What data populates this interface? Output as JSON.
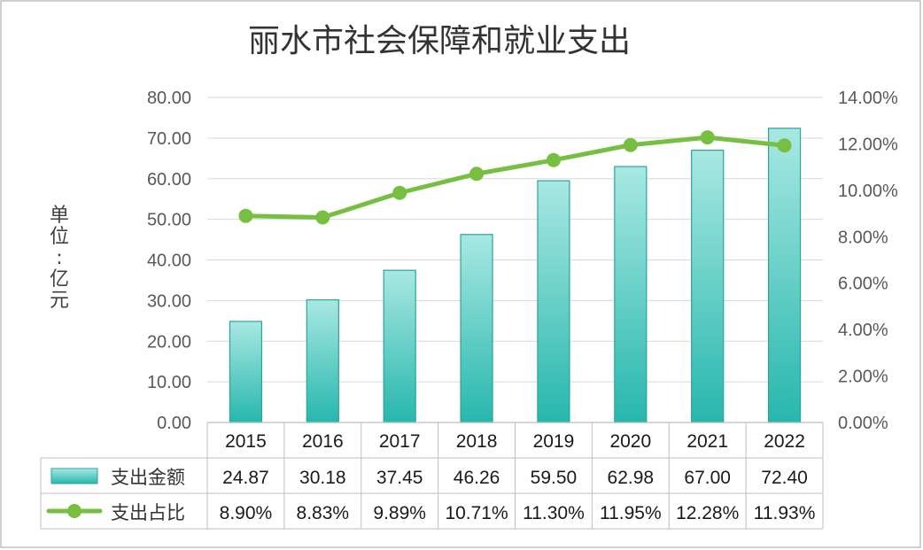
{
  "chart_data": {
    "type": "bar",
    "title": "丽水市社会保障和就业支出",
    "ylabel_chars": [
      "单",
      "位",
      ":",
      "亿",
      "元"
    ],
    "categories": [
      "2015",
      "2016",
      "2017",
      "2018",
      "2019",
      "2020",
      "2021",
      "2022"
    ],
    "series": [
      {
        "name": "支出金额",
        "type": "bar",
        "axis": "left",
        "values": [
          24.87,
          30.18,
          37.45,
          46.26,
          59.5,
          62.98,
          67.0,
          72.4
        ],
        "labels": [
          "24.87",
          "30.18",
          "37.45",
          "46.26",
          "59.50",
          "62.98",
          "67.00",
          "72.40"
        ],
        "color_top": "#a8e8e2",
        "color_bottom": "#27b7ad",
        "border": "#2aa59b"
      },
      {
        "name": "支出占比",
        "type": "line",
        "axis": "right",
        "values": [
          8.9,
          8.83,
          9.89,
          10.71,
          11.3,
          11.95,
          12.28,
          11.93
        ],
        "labels": [
          "8.90%",
          "8.83%",
          "9.89%",
          "10.71%",
          "11.30%",
          "11.95%",
          "12.28%",
          "11.93%"
        ],
        "color": "#77bf41"
      }
    ],
    "y_left": {
      "min": 0,
      "max": 80,
      "step": 10,
      "ticks": [
        "0.00",
        "10.00",
        "20.00",
        "30.00",
        "40.00",
        "50.00",
        "60.00",
        "70.00",
        "80.00"
      ]
    },
    "y_right": {
      "min": 0,
      "max": 14,
      "step": 2,
      "ticks": [
        "0.00%",
        "2.00%",
        "4.00%",
        "6.00%",
        "8.00%",
        "10.00%",
        "12.00%",
        "14.00%"
      ]
    },
    "grid": true,
    "legend": "data-table"
  }
}
